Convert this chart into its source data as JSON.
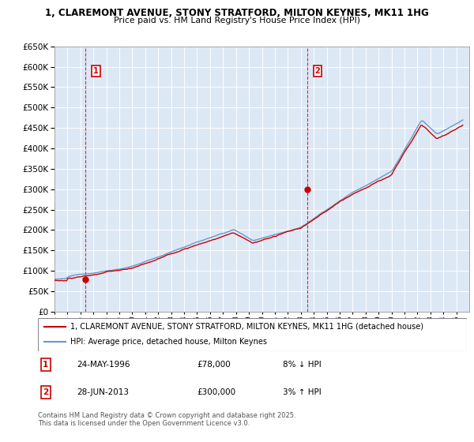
{
  "title": "1, CLAREMONT AVENUE, STONY STRATFORD, MILTON KEYNES, MK11 1HG",
  "subtitle": "Price paid vs. HM Land Registry's House Price Index (HPI)",
  "legend_line1": "1, CLAREMONT AVENUE, STONY STRATFORD, MILTON KEYNES, MK11 1HG (detached house)",
  "legend_line2": "HPI: Average price, detached house, Milton Keynes",
  "transactions": [
    {
      "num": 1,
      "date": "24-MAY-1996",
      "price": "£78,000",
      "hpi": "8% ↓ HPI"
    },
    {
      "num": 2,
      "date": "28-JUN-2013",
      "price": "£300,000",
      "hpi": "3% ↑ HPI"
    }
  ],
  "footer": "Contains HM Land Registry data © Crown copyright and database right 2025.\nThis data is licensed under the Open Government Licence v3.0.",
  "point1_year": 1996.4,
  "point1_price": 78000,
  "point2_year": 2013.5,
  "point2_price": 300000,
  "ylim": [
    0,
    650000
  ],
  "yticks": [
    0,
    50000,
    100000,
    150000,
    200000,
    250000,
    300000,
    350000,
    400000,
    450000,
    500000,
    550000,
    600000,
    650000
  ],
  "red_color": "#cc0000",
  "blue_color": "#6699cc",
  "plot_bg_color": "#dde8f5",
  "background_color": "#ffffff",
  "grid_color": "#ffffff",
  "annotation_box_color": "#cc0000"
}
